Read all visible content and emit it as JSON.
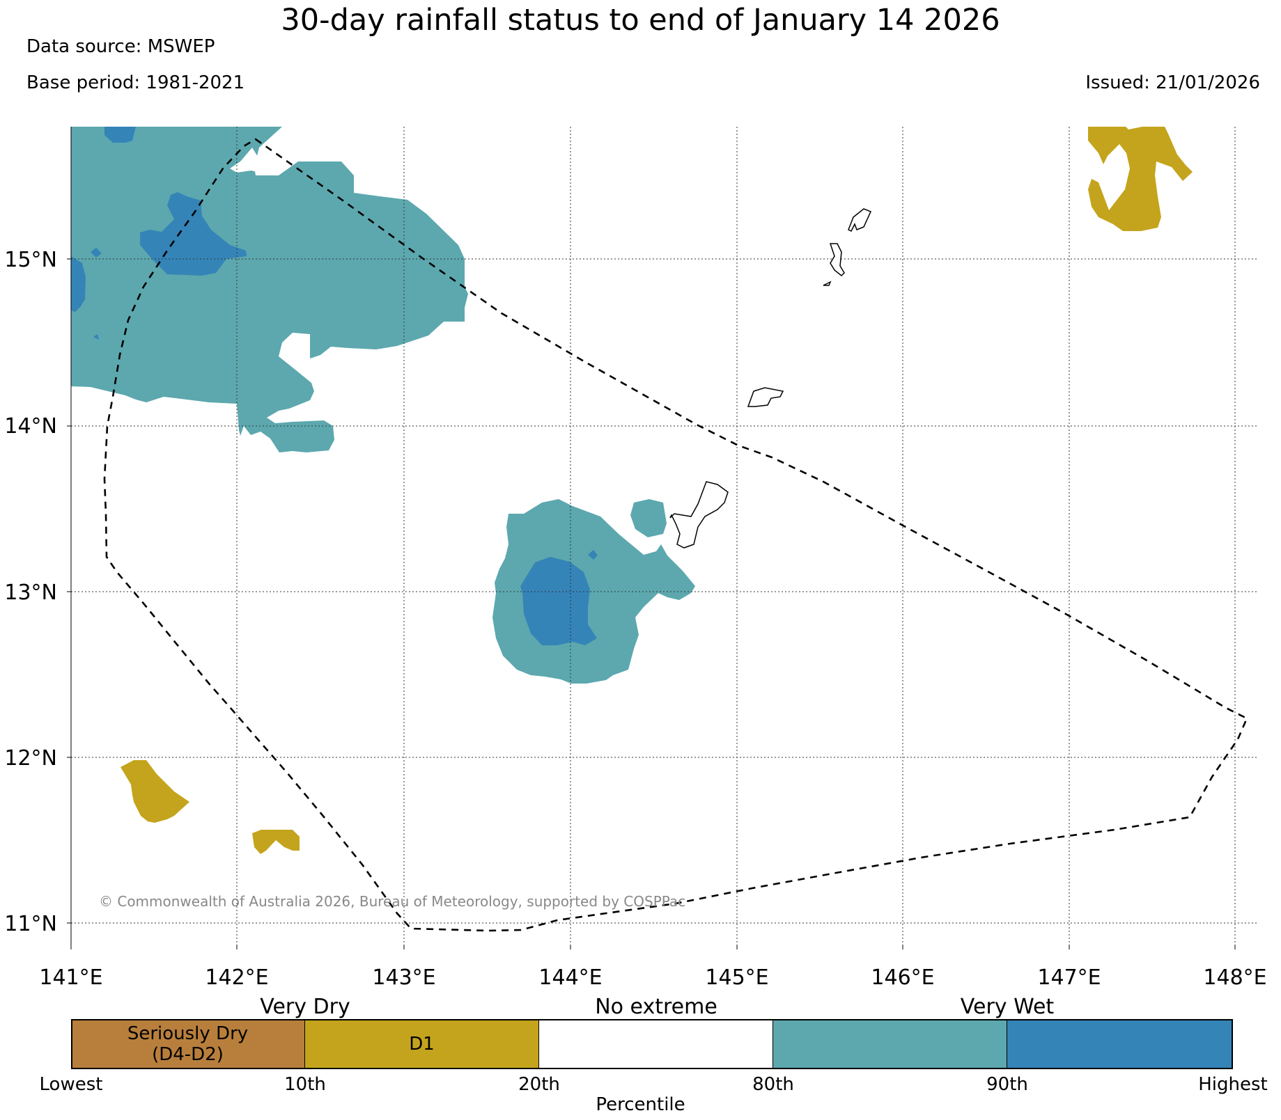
{
  "header": {
    "title": "30-day rainfall status to end of January 14 2026",
    "data_source": "Data source: MSWEP",
    "base_period": "Base period: 1981-2021",
    "issued": "Issued: 21/01/2026"
  },
  "map": {
    "latitude_labels": [
      "15°N",
      "14°N",
      "13°N",
      "12°N",
      "11°N"
    ],
    "longitude_labels": [
      "141°E",
      "142°E",
      "143°E",
      "144°E",
      "145°E",
      "146°E",
      "147°E",
      "148°E"
    ],
    "copyright": "© Commonwealth of Australia 2026, Bureau of Meteorology, supported by COSPPac",
    "colors": {
      "seriously_dry": "#b87f3c",
      "d1": "#c4a41c",
      "no_extreme": "#ffffff",
      "very_wet_80_90": "#5ca8ae",
      "very_wet_90_plus": "#3484b8"
    }
  },
  "legend": {
    "group_labels": {
      "very_dry": "Very Dry",
      "no_extreme": "No extreme",
      "very_wet": "Very Wet"
    },
    "segments": [
      {
        "label": "Seriously Dry\n(D4-D2)",
        "color": "#b87f3c"
      },
      {
        "label": "D1",
        "color": "#c4a41c"
      },
      {
        "label": "",
        "color": "#ffffff"
      },
      {
        "label": "",
        "color": "#5ca8ae"
      },
      {
        "label": "",
        "color": "#3484b8"
      }
    ],
    "percentile_ticks": [
      "Lowest",
      "10th",
      "20th",
      "80th",
      "90th",
      "Highest"
    ],
    "axis_title": "Percentile"
  }
}
